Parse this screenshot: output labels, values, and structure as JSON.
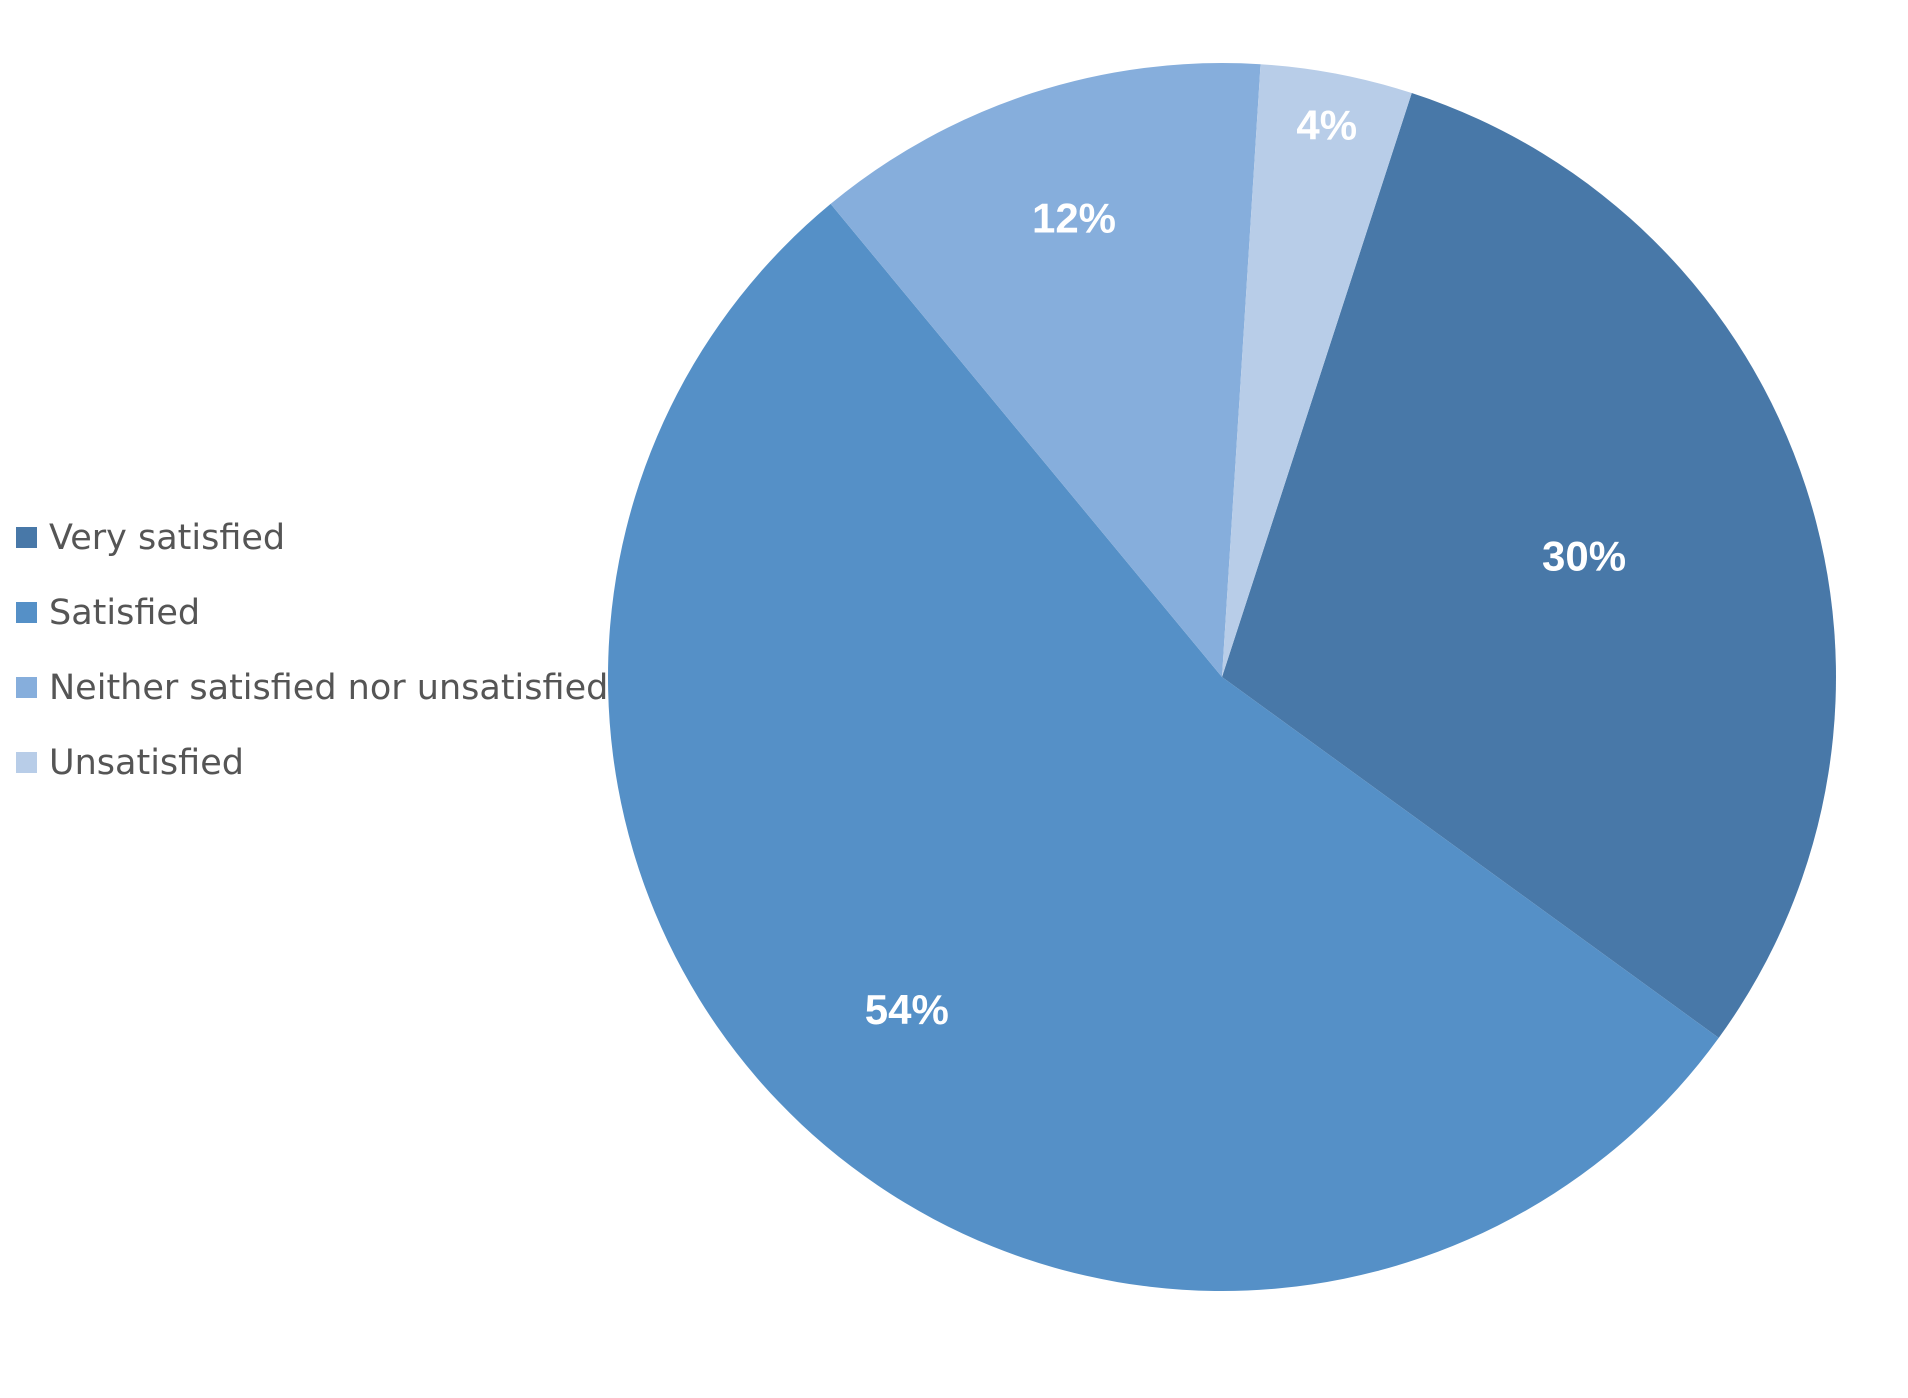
{
  "chart_data": {
    "type": "pie",
    "title": "",
    "start_angle_deg": 18,
    "direction": "clockwise",
    "legend_position": "left",
    "slices": [
      {
        "category": "Very satisfied",
        "value": 30,
        "label": "30%",
        "color": "#4878A8"
      },
      {
        "category": "Satisfied",
        "value": 54,
        "label": "54%",
        "color": "#5590C7"
      },
      {
        "category": "Neither satisfied nor unsatisfied",
        "value": 12,
        "label": "12%",
        "color": "#86AEDC"
      },
      {
        "category": "Unsatisfied",
        "value": 4,
        "label": "4%",
        "color": "#B8CDE8"
      }
    ]
  }
}
